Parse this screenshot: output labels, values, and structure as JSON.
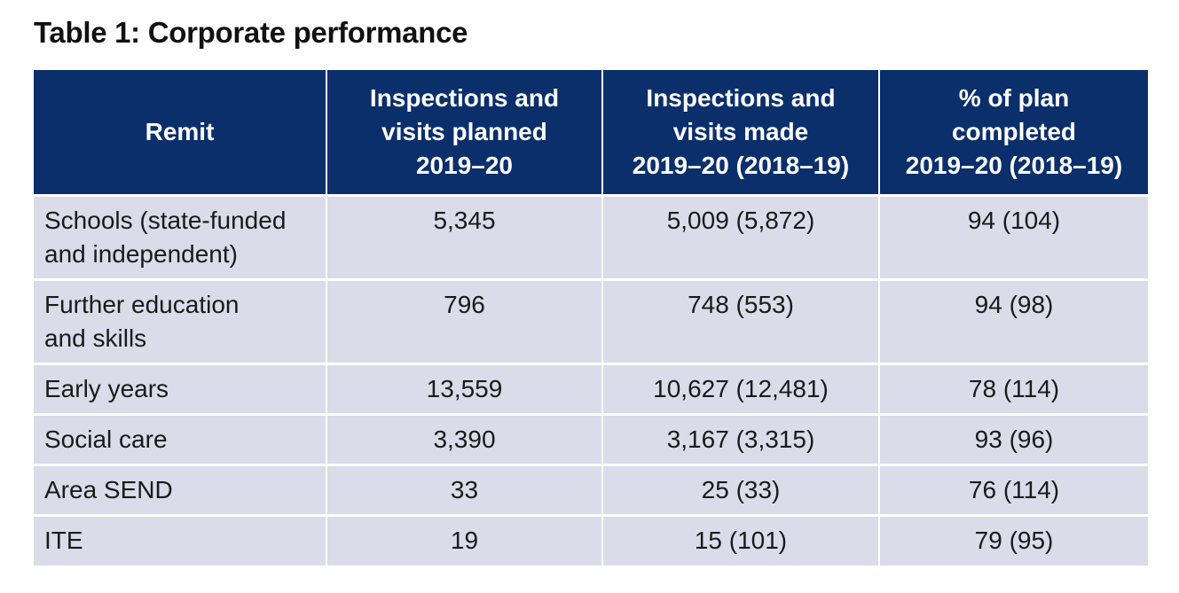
{
  "title": "Table 1:  Corporate performance",
  "table": {
    "headers": [
      [
        "Remit"
      ],
      [
        "Inspections and",
        "visits planned",
        "2019–20"
      ],
      [
        "Inspections and",
        "visits made",
        "2019–20 (2018–19)"
      ],
      [
        "% of plan",
        "completed",
        "2019–20 (2018–19)"
      ]
    ],
    "rows": [
      {
        "remit": [
          "Schools (state-funded",
          "and independent)"
        ],
        "planned": "5,345",
        "made": "5,009 (5,872)",
        "completed": "94 (104)"
      },
      {
        "remit": [
          "Further education",
          "and skills"
        ],
        "planned": "796",
        "made": "748 (553)",
        "completed": "94 (98)"
      },
      {
        "remit": [
          "Early years"
        ],
        "planned": "13,559",
        "made": "10,627 (12,481)",
        "completed": "78 (114)"
      },
      {
        "remit": [
          "Social care"
        ],
        "planned": "3,390",
        "made": "3,167 (3,315)",
        "completed": "93 (96)"
      },
      {
        "remit": [
          "Area SEND"
        ],
        "planned": "33",
        "made": "25 (33)",
        "completed": "76 (114)"
      },
      {
        "remit": [
          "ITE"
        ],
        "planned": "19",
        "made": "15 (101)",
        "completed": "79 (95)"
      }
    ]
  },
  "colors": {
    "header_bg": "#0b2f6b",
    "row_bg": "#dcdbe9",
    "header_text": "#ffffff"
  }
}
